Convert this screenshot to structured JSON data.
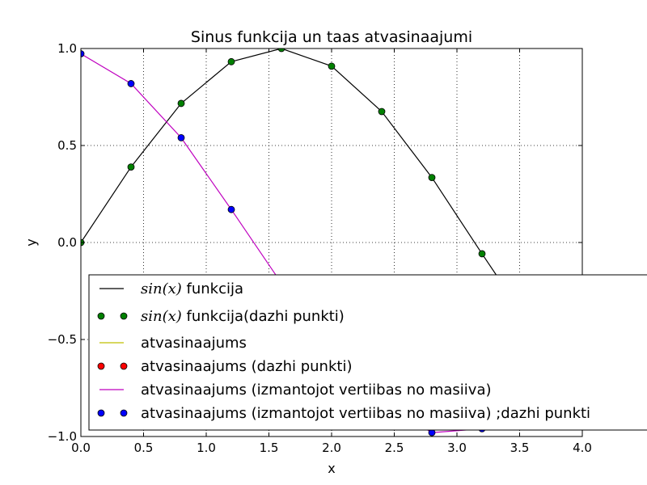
{
  "chart_data": {
    "type": "line",
    "title": "Sinus funkcija un taas atvasinaajumi",
    "xlabel": "x",
    "ylabel": "y",
    "xlim": [
      0.0,
      4.0
    ],
    "ylim": [
      -1.0,
      1.0
    ],
    "grid": true,
    "xticks": [
      0.0,
      0.5,
      1.0,
      1.5,
      2.0,
      2.5,
      3.0,
      3.5,
      4.0
    ],
    "xtick_labels": [
      "0.0",
      "0.5",
      "1.0",
      "1.5",
      "2.0",
      "2.5",
      "3.0",
      "3.5",
      "4.0"
    ],
    "yticks": [
      1.0,
      0.5,
      0.0,
      -0.5,
      -1.0
    ],
    "ytick_labels": [
      "1.0",
      "0.5",
      "0.0",
      "−0.5",
      "−1.0"
    ],
    "legend_placement": "lower-right",
    "series": [
      {
        "name": "$sin(x)$ funkcija",
        "legend_math": "sin(x)",
        "legend_text": "funkcija",
        "style": "line",
        "color": "#000000",
        "x": [
          0.0,
          0.4,
          0.8,
          1.2,
          1.6,
          2.0,
          2.4,
          2.8,
          3.2,
          3.6,
          4.0
        ],
        "y": [
          0.0,
          0.389,
          0.717,
          0.932,
          1.0,
          0.909,
          0.675,
          0.335,
          -0.058,
          -0.443,
          -0.757
        ]
      },
      {
        "name": "$sin(x)$ funkcija(dazhi punkti)",
        "legend_math": "sin(x)",
        "legend_text": "funkcija(dazhi punkti)",
        "style": "markers",
        "color": "#008000",
        "x": [
          0.0,
          0.4,
          0.8,
          1.2,
          1.6,
          2.0,
          2.4,
          2.8,
          3.2,
          3.6,
          4.0
        ],
        "y": [
          0.0,
          0.389,
          0.717,
          0.932,
          1.0,
          0.909,
          0.675,
          0.335,
          -0.058,
          -0.443,
          -0.757
        ]
      },
      {
        "name": "atvasinaajums",
        "legend_text": "atvasinaajums",
        "style": "line",
        "color": "#bfbf00",
        "x": [],
        "y": []
      },
      {
        "name": "atvasinaajums (dazhi punkti)",
        "legend_text": "atvasinaajums (dazhi punkti)",
        "style": "markers",
        "color": "#ff0000",
        "x": [],
        "y": []
      },
      {
        "name": "atvasinaajums (izmantojot vertiibas no masiiva)",
        "legend_text": "atvasinaajums (izmantojot vertiibas no masiiva)",
        "style": "line",
        "color": "#bf00bf",
        "x": [
          0.0,
          0.4,
          0.8,
          1.2,
          1.6,
          2.0,
          2.4,
          2.8,
          3.2
        ],
        "y": [
          0.973,
          0.819,
          0.54,
          0.17,
          -0.21,
          -0.55,
          -0.82,
          -0.98,
          -0.96
        ]
      },
      {
        "name": "atvasinaajums (izmantojot vertiibas no masiiva) ;dazhi punkti",
        "legend_text": "atvasinaajums (izmantojot vertiibas no masiiva) ;dazhi punkti",
        "style": "markers",
        "color": "#0000ff",
        "x": [
          0.0,
          0.4,
          0.8,
          1.2,
          1.6,
          2.0,
          2.4,
          2.8,
          3.2
        ],
        "y": [
          0.973,
          0.819,
          0.54,
          0.17,
          -0.21,
          -0.55,
          -0.82,
          -0.98,
          -0.96
        ]
      }
    ]
  }
}
